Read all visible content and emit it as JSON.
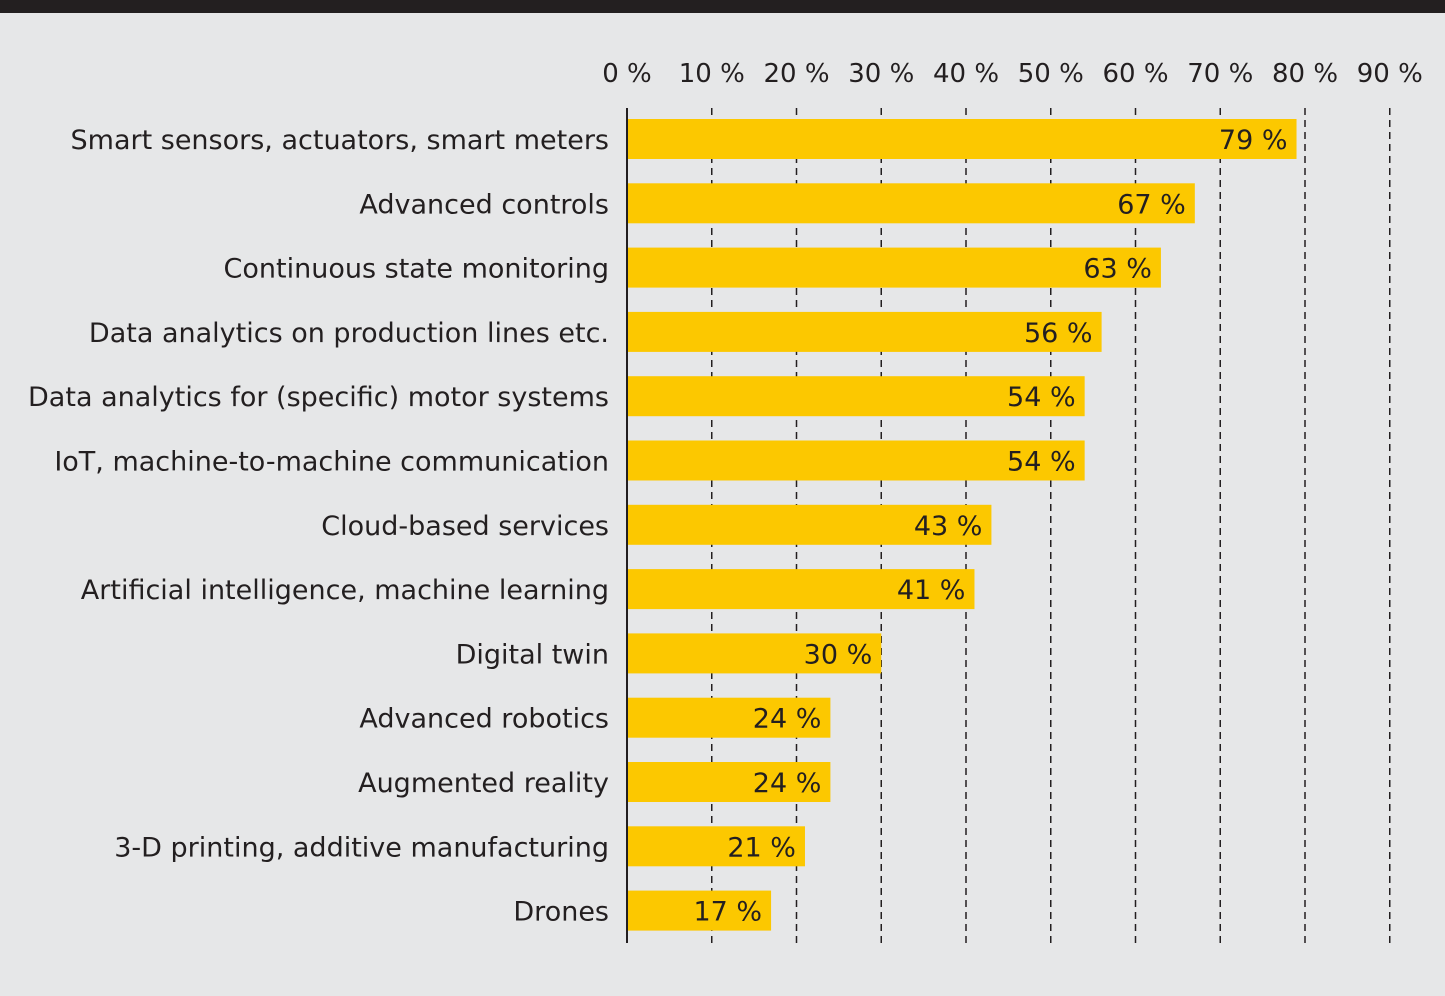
{
  "chart_data": {
    "type": "bar",
    "orientation": "horizontal",
    "title": "",
    "xlabel": "",
    "ylabel": "",
    "xlim": [
      0,
      90
    ],
    "x_ticks": [
      "0 %",
      "10 %",
      "20 %",
      "30 %",
      "40 %",
      "50 %",
      "60 %",
      "70 %",
      "80 %",
      "90 %"
    ],
    "tick_axis_position": "top",
    "grid": "dashed vertical",
    "bar_color": "#fcc800",
    "categories": [
      "Smart sensors, actuators, smart meters",
      "Advanced controls",
      "Continuous state monitoring",
      "Data analytics on production lines etc.",
      "Data analytics for (specific) motor systems",
      "IoT, machine-to-machine communication",
      "Cloud-based services",
      "Artificial intelligence, machine learning",
      "Digital twin",
      "Advanced robotics",
      "Augmented reality",
      "3-D printing, additive manufacturing",
      "Drones"
    ],
    "values": [
      79,
      67,
      63,
      56,
      54,
      54,
      43,
      41,
      30,
      24,
      24,
      21,
      17
    ],
    "data_labels": [
      "79 %",
      "67 %",
      "63 %",
      "56 %",
      "54 %",
      "54 %",
      "43 %",
      "41 %",
      "30 %",
      "24 %",
      "24 %",
      "21 %",
      "17 %"
    ]
  }
}
